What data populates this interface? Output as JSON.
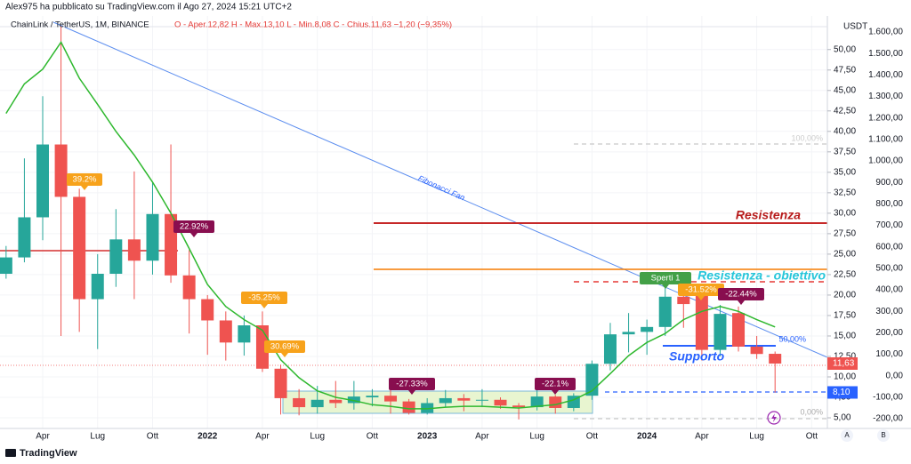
{
  "chart_data": {
    "type": "candlestick",
    "published": "Alex975 ha pubblicato su TradingView.com il Ago 27, 2024 15:21 UTC+2",
    "title": "ChainLink / TetherUS, 1M, BINANCE",
    "ohlc_text": "O - Aper.12,82  H - Max.13,10  L - Min.8,08  C - Chius.11,63  −1,20 (−9,35%)",
    "y_axis_label": "USDT",
    "categories": [
      null,
      null,
      "Apr",
      null,
      null,
      "Lug",
      null,
      null,
      "Ott",
      null,
      null,
      "2022",
      null,
      null,
      "Apr",
      null,
      null,
      "Lug",
      null,
      null,
      "Ott",
      null,
      null,
      "2023",
      null,
      null,
      "Apr",
      null,
      null,
      "Lug",
      null,
      null,
      "Ott",
      null,
      null,
      "2024",
      null,
      null,
      "Apr",
      null,
      null,
      "Lug",
      null,
      null,
      "Ott"
    ],
    "open": [
      22.6,
      24.6,
      29.5,
      38.4,
      32.0,
      19.5,
      22.6,
      26.8,
      24.2,
      29.9,
      22.4,
      19.5,
      16.9,
      14.2,
      16.3,
      11.0,
      7.4,
      6.3,
      7.2,
      6.8,
      7.5,
      7.7,
      7.0,
      5.6,
      6.8,
      7.4,
      7.1,
      7.2,
      6.5,
      6.3,
      7.6,
      6.2,
      7.7,
      11.6,
      15.2,
      15.5,
      16.1,
      19.8,
      19.9,
      13.3,
      17.8,
      13.7,
      12.82,
      null,
      null
    ],
    "high": [
      26.0,
      36.7,
      44.3,
      52.9,
      33.0,
      25.0,
      30.5,
      35.1,
      33.8,
      38.4,
      25.5,
      20.0,
      18.0,
      17.5,
      18.0,
      11.5,
      8.5,
      8.9,
      9.5,
      9.5,
      8.5,
      8.9,
      7.3,
      7.4,
      8.4,
      7.9,
      8.5,
      7.5,
      6.8,
      9.0,
      7.8,
      8.0,
      12.0,
      16.6,
      17.8,
      17.0,
      21.2,
      22.8,
      20.2,
      18.8,
      18.6,
      15.0,
      13.1,
      null,
      null
    ],
    "low": [
      22.0,
      24.0,
      26.7,
      15.0,
      15.5,
      13.4,
      21.0,
      19.5,
      22.5,
      21.5,
      15.3,
      12.7,
      12.0,
      12.6,
      10.6,
      5.4,
      5.3,
      5.5,
      6.2,
      6.0,
      6.4,
      5.5,
      5.4,
      5.4,
      6.3,
      5.8,
      6.3,
      6.1,
      4.8,
      5.9,
      5.5,
      5.8,
      7.2,
      10.8,
      13.0,
      12.7,
      15.0,
      16.0,
      12.0,
      12.5,
      13.1,
      12.2,
      8.08,
      null,
      null
    ],
    "close": [
      24.6,
      29.5,
      38.4,
      32.0,
      19.5,
      22.6,
      26.8,
      24.2,
      29.9,
      22.4,
      19.5,
      16.9,
      14.2,
      16.3,
      11.0,
      7.4,
      6.3,
      7.2,
      6.8,
      7.6,
      7.7,
      7.0,
      5.6,
      6.8,
      7.4,
      7.1,
      7.2,
      6.5,
      6.3,
      7.6,
      6.2,
      7.7,
      11.6,
      15.2,
      15.5,
      16.1,
      19.8,
      18.9,
      13.3,
      17.7,
      13.7,
      12.8,
      11.63,
      null,
      null
    ],
    "up_color": "#26a69a",
    "down_color": "#ef5350",
    "ma": {
      "color": "#2eb82e",
      "values": [
        42.2,
        45.8,
        47.6,
        50.9,
        46.5,
        43.3,
        40.0,
        37.1,
        33.8,
        30.0,
        25.7,
        21.3,
        18.6,
        17.0,
        15.7,
        12.1,
        9.9,
        8.3,
        7.5,
        7.1,
        6.6,
        6.4,
        6.1,
        6.1,
        6.3,
        6.4,
        6.4,
        6.3,
        6.2,
        6.4,
        6.6,
        7.2,
        8.3,
        10.4,
        12.6,
        14.2,
        15.3,
        17.0,
        18.0,
        18.6,
        18.0,
        17.0,
        16.1,
        null,
        null
      ]
    },
    "ylim": [
      3.7,
      54.1
    ],
    "yticks": [
      {
        "value": 5,
        "label": "5,00"
      },
      {
        "value": 7.5,
        "label": "7,50"
      },
      {
        "value": 10,
        "label": "10,00"
      },
      {
        "value": 12.5,
        "label": "12,50"
      },
      {
        "value": 15,
        "label": "15,00"
      },
      {
        "value": 17.5,
        "label": "17,50"
      },
      {
        "value": 20,
        "label": "20,00"
      },
      {
        "value": 22.5,
        "label": "22,50"
      },
      {
        "value": 25,
        "label": "25,00"
      },
      {
        "value": 27.5,
        "label": "27,50"
      },
      {
        "value": 30,
        "label": "30,00"
      },
      {
        "value": 32.5,
        "label": "32,50"
      },
      {
        "value": 35,
        "label": "35,00"
      },
      {
        "value": 37.5,
        "label": "37,50"
      },
      {
        "value": 40,
        "label": "40,00"
      },
      {
        "value": 42.5,
        "label": "42,50"
      },
      {
        "value": 45,
        "label": "45,00"
      },
      {
        "value": 47.5,
        "label": "47,50"
      },
      {
        "value": 50,
        "label": "50,00"
      }
    ],
    "y2lim": [
      -245.5,
      1674.5
    ],
    "y2ticks": [
      {
        "value": 1600,
        "label": "1.600,00"
      },
      {
        "value": 1500,
        "label": "1.500,00"
      },
      {
        "value": 1400,
        "label": "1.400,00"
      },
      {
        "value": 1300,
        "label": "1.300,00"
      },
      {
        "value": 1200,
        "label": "1.200,00"
      },
      {
        "value": 1100,
        "label": "1.100,00"
      },
      {
        "value": 1000,
        "label": "1.000,00"
      },
      {
        "value": 900,
        "label": "900,00"
      },
      {
        "value": 800,
        "label": "800,00"
      },
      {
        "value": 700,
        "label": "700,00"
      },
      {
        "value": 600,
        "label": "600,00"
      },
      {
        "value": 500,
        "label": "500,00"
      },
      {
        "value": 400,
        "label": "400,00"
      },
      {
        "value": 300,
        "label": "300,00"
      },
      {
        "value": 200,
        "label": "200,00"
      },
      {
        "value": 100,
        "label": "100,00"
      },
      {
        "value": 0,
        "label": "0,00"
      },
      {
        "value": -100,
        "label": "-100,00"
      },
      {
        "value": -200,
        "label": "-200,00"
      }
    ],
    "grid": true,
    "price_tags": [
      {
        "value": 11.63,
        "label": "11,63",
        "color": "#ef5350"
      },
      {
        "value": 8.1,
        "label": "8,10",
        "color": "#2962ff"
      }
    ],
    "annotations": [
      "39.2%",
      "22.92%",
      "-35.25%",
      "30.69%",
      "-27.33%",
      "-22.1%",
      "Sperti 1",
      "-31.52%",
      "-22.44%"
    ],
    "drawing_labels": {
      "resistance": "Resistenza",
      "target": "Resistenza - obiettivo",
      "support": "Supporto",
      "fan": "Fibonacci Fan",
      "fib_100": "100,00%",
      "fib_50": "50,00%",
      "fib_0": "0,00%"
    },
    "scale_buttons": [
      "A",
      "B"
    ],
    "brand": "TradingView"
  }
}
